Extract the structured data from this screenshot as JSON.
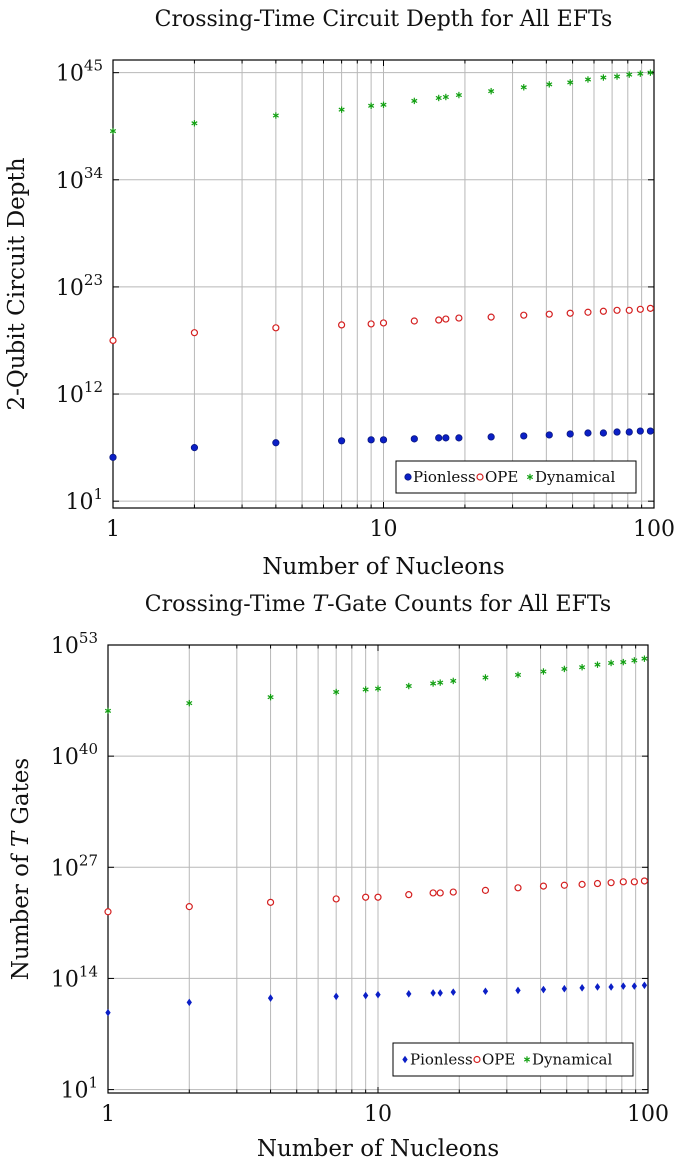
{
  "chart_data": [
    {
      "type": "scatter",
      "title": "Crossing-Time Circuit Depth for All EFTs",
      "xlabel": "Number of Nucleons",
      "ylabel": "2-Qubit Circuit Depth",
      "x_scale": "log",
      "y_scale": "log",
      "xlim": [
        1,
        100
      ],
      "ylim_exponent": [
        0.3,
        46.3
      ],
      "x_ticks": [
        {
          "value": 1,
          "label": "1"
        },
        {
          "value": 10,
          "label": "10"
        },
        {
          "value": 100,
          "label": "100"
        }
      ],
      "y_ticks": [
        {
          "base": "10",
          "exp": "1",
          "value": 1
        },
        {
          "base": "10",
          "exp": "12",
          "value": 12
        },
        {
          "base": "10",
          "exp": "23",
          "value": 23
        },
        {
          "base": "10",
          "exp": "34",
          "value": 34
        },
        {
          "base": "10",
          "exp": "45",
          "value": 45
        }
      ],
      "x": [
        1,
        2,
        4,
        7,
        9,
        10,
        13,
        16,
        17,
        19,
        25,
        33,
        41,
        49,
        57,
        65,
        73,
        81,
        89,
        97
      ],
      "grid": true,
      "legend": "bottom-right",
      "series": [
        {
          "name": "Pionless",
          "marker": "circle-filled",
          "color": "#0b1fc6",
          "log10_values": [
            5.5,
            6.5,
            7.0,
            7.2,
            7.3,
            7.3,
            7.4,
            7.5,
            7.5,
            7.5,
            7.6,
            7.7,
            7.8,
            7.9,
            8.0,
            8.0,
            8.1,
            8.1,
            8.2,
            8.2
          ]
        },
        {
          "name": "OPE",
          "marker": "circle-open",
          "color": "#d42020",
          "log10_values": [
            17.5,
            18.3,
            18.8,
            19.1,
            19.2,
            19.3,
            19.5,
            19.6,
            19.7,
            19.8,
            19.9,
            20.1,
            20.2,
            20.3,
            20.4,
            20.5,
            20.6,
            20.6,
            20.7,
            20.8
          ]
        },
        {
          "name": "Dynamical",
          "marker": "star",
          "color": "#12a012",
          "log10_values": [
            39.0,
            39.8,
            40.6,
            41.2,
            41.6,
            41.7,
            42.1,
            42.4,
            42.5,
            42.7,
            43.1,
            43.5,
            43.8,
            44.0,
            44.3,
            44.5,
            44.6,
            44.8,
            44.9,
            45.0
          ]
        }
      ]
    },
    {
      "type": "scatter",
      "title": "Crossing-Time T-Gate Counts for All EFTs",
      "title_parts": [
        "Crossing-Time ",
        "T",
        "-Gate Counts for All EFTs"
      ],
      "xlabel": "Number of Nucleons",
      "ylabel": "Number of T Gates",
      "ylabel_parts": [
        "Number of ",
        "T",
        " Gates"
      ],
      "x_scale": "log",
      "y_scale": "log",
      "xlim": [
        1,
        100
      ],
      "ylim_exponent": [
        0.6,
        53
      ],
      "x_ticks": [
        {
          "value": 1,
          "label": "1"
        },
        {
          "value": 10,
          "label": "10"
        },
        {
          "value": 100,
          "label": "100"
        }
      ],
      "y_ticks": [
        {
          "base": "10",
          "exp": "1",
          "value": 1
        },
        {
          "base": "10",
          "exp": "14",
          "value": 14
        },
        {
          "base": "10",
          "exp": "27",
          "value": 27
        },
        {
          "base": "10",
          "exp": "40",
          "value": 40
        },
        {
          "base": "10",
          "exp": "53",
          "value": 53
        }
      ],
      "x": [
        1,
        2,
        4,
        7,
        9,
        10,
        13,
        16,
        17,
        19,
        25,
        33,
        41,
        49,
        57,
        65,
        73,
        81,
        89,
        97
      ],
      "grid": true,
      "legend": "bottom-right",
      "series": [
        {
          "name": "Pionless",
          "marker": "diamond-filled",
          "color": "#0b1fc6",
          "log10_values": [
            10.0,
            11.2,
            11.7,
            11.9,
            12.0,
            12.1,
            12.2,
            12.3,
            12.3,
            12.4,
            12.5,
            12.6,
            12.7,
            12.8,
            12.9,
            13.0,
            13.0,
            13.1,
            13.1,
            13.2
          ]
        },
        {
          "name": "OPE",
          "marker": "circle-open",
          "color": "#d42020",
          "log10_values": [
            21.8,
            22.4,
            22.9,
            23.3,
            23.5,
            23.5,
            23.8,
            24.0,
            24.0,
            24.1,
            24.3,
            24.6,
            24.8,
            24.9,
            25.0,
            25.1,
            25.2,
            25.3,
            25.3,
            25.4
          ]
        },
        {
          "name": "Dynamical",
          "marker": "star",
          "color": "#12a012",
          "log10_values": [
            45.3,
            46.2,
            46.9,
            47.5,
            47.8,
            47.9,
            48.2,
            48.5,
            48.6,
            48.8,
            49.2,
            49.5,
            49.9,
            50.2,
            50.4,
            50.7,
            50.9,
            51.0,
            51.2,
            51.4
          ]
        }
      ]
    }
  ]
}
